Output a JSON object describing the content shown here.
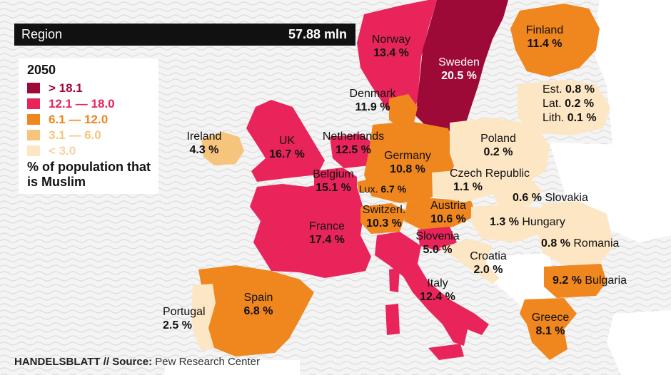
{
  "header": {
    "label": "Region",
    "value": "57.88 mln"
  },
  "legend": {
    "year": "2050",
    "caption": "% of population that is Muslim",
    "classes": [
      {
        "label": "> 18.1",
        "color": "#9e0a37"
      },
      {
        "label": "12.1 — 18.0",
        "color": "#e8245a"
      },
      {
        "label": "6.1 — 12.0",
        "color": "#f0861e"
      },
      {
        "label": "3.1 — 6.0",
        "color": "#f7c47e"
      },
      {
        "label": "< 3.0",
        "color": "#fde6c4"
      }
    ]
  },
  "countries": {
    "norway": {
      "name": "Norway",
      "value": "13.4 %"
    },
    "sweden": {
      "name": "Sweden",
      "value": "20.5 %"
    },
    "finland": {
      "name": "Finland",
      "value": "11.4 %"
    },
    "denmark": {
      "name": "Denmark",
      "value": "11.9 %"
    },
    "estonia": {
      "name": "Est.",
      "value": "0.8 %"
    },
    "latvia": {
      "name": "Lat.",
      "value": "0.2 %"
    },
    "lithuania": {
      "name": "Lith.",
      "value": "0.1 %"
    },
    "ireland": {
      "name": "Ireland",
      "value": "4.3 %"
    },
    "uk": {
      "name": "UK",
      "value": "16.7 %"
    },
    "netherlands": {
      "name": "Netherlands",
      "value": "12.5 %"
    },
    "belgium": {
      "name": "Belgium",
      "value": "15.1 %"
    },
    "luxembourg": {
      "name": "Lux.",
      "value": "6.7 %"
    },
    "germany": {
      "name": "Germany",
      "value": "10.8 %"
    },
    "poland": {
      "name": "Poland",
      "value": "0.2 %"
    },
    "czech": {
      "name": "Czech Republic",
      "value": "1.1 %"
    },
    "slovakia": {
      "name": "Slovakia",
      "value": "0.6 %"
    },
    "austria": {
      "name": "Austria",
      "value": "10.6 %"
    },
    "switzerland": {
      "name": "Switzerl.",
      "value": "10.3 %"
    },
    "hungary": {
      "name": "Hungary",
      "value": "1.3 %"
    },
    "france": {
      "name": "France",
      "value": "17.4 %"
    },
    "slovenia": {
      "name": "Slovenia",
      "value": "5.0 %"
    },
    "croatia": {
      "name": "Croatia",
      "value": "2.0 %"
    },
    "romania": {
      "name": "Romania",
      "value": "0.8 %"
    },
    "bulgaria": {
      "name": "Bulgaria",
      "value": "9.2 %"
    },
    "italy": {
      "name": "Italy",
      "value": "12.4 %"
    },
    "spain": {
      "name": "Spain",
      "value": "6.8 %"
    },
    "portugal": {
      "name": "Portugal",
      "value": "2.5 %"
    },
    "greece": {
      "name": "Greece",
      "value": "8.1 %"
    }
  },
  "footer": {
    "brand": "HANDELSBLATT",
    "separator": " // ",
    "source_label": "Source:",
    "source": " Pew Research Center"
  }
}
